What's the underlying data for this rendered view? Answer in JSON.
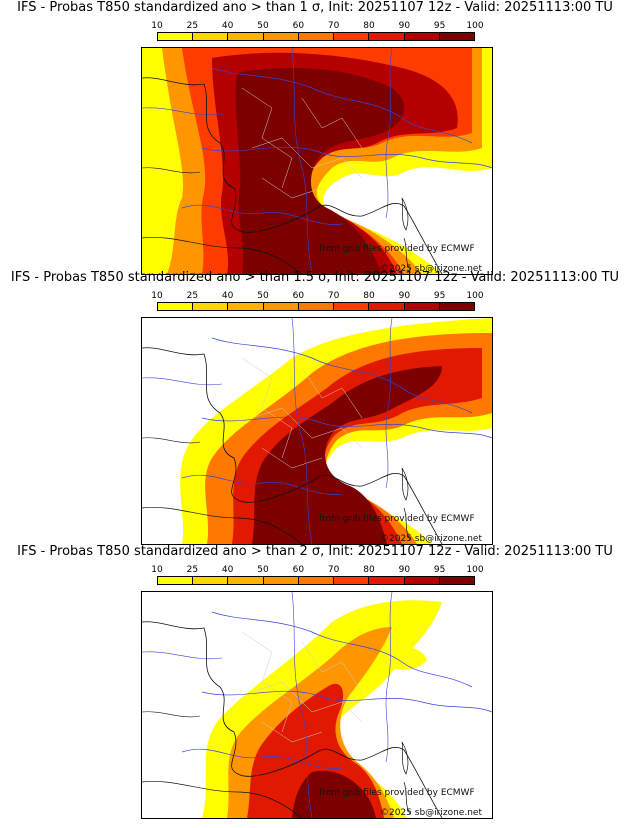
{
  "panels": [
    {
      "title": "IFS - Probas T850  standardized ano > than 1 σ, Init: 20251107 12z - Valid: 20251113:00 TU"
    },
    {
      "title": "IFS - Probas T850  standardized ano > than 1.5 σ, Init: 20251107 12z - Valid: 20251113:00 TU"
    },
    {
      "title": "IFS - Probas T850  standardized ano > than 2 σ, Init: 20251107 12z - Valid: 20251113:00 TU"
    }
  ],
  "colorbar": {
    "ticks": [
      "10",
      "25",
      "40",
      "50",
      "60",
      "70",
      "80",
      "90",
      "95",
      "100"
    ],
    "colors": [
      "#ffff00",
      "#ffd700",
      "#ffb400",
      "#ff9600",
      "#ff7800",
      "#ff3c00",
      "#e11900",
      "#b40000",
      "#7d0000"
    ]
  },
  "credits": {
    "source": "from grib files provided by ECMWF",
    "copyright": "©2025 sb@irizone.net"
  }
}
